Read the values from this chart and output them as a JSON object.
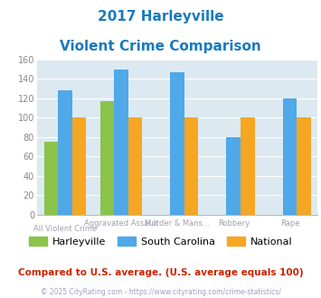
{
  "title_line1": "2017 Harleyville",
  "title_line2": "Violent Crime Comparison",
  "title_color": "#1a7abf",
  "series": {
    "Harleyville": [
      75,
      117,
      0,
      0,
      0
    ],
    "South Carolina": [
      128,
      150,
      147,
      80,
      120
    ],
    "National": [
      100,
      100,
      100,
      100,
      100
    ]
  },
  "colors": {
    "Harleyville": "#8bc34a",
    "South Carolina": "#4fa8e8",
    "National": "#f5a623"
  },
  "ylim": [
    0,
    160
  ],
  "yticks": [
    0,
    20,
    40,
    60,
    80,
    100,
    120,
    140,
    160
  ],
  "bg_color": "#dce9f0",
  "footnote": "Compared to U.S. average. (U.S. average equals 100)",
  "copyright": "© 2025 CityRating.com - https://www.cityrating.com/crime-statistics/",
  "footnote_color": "#cc2200",
  "copyright_color": "#a0a0c0",
  "xlabel_color": "#a0a0b0",
  "bar_width": 0.25,
  "n_cats": 5,
  "top_labels": [
    "",
    "Aggravated Assault",
    "Murder & Mans...",
    "Robbery",
    "Rape"
  ],
  "bot_labels": [
    "All Violent Crime",
    "",
    "",
    "",
    ""
  ]
}
